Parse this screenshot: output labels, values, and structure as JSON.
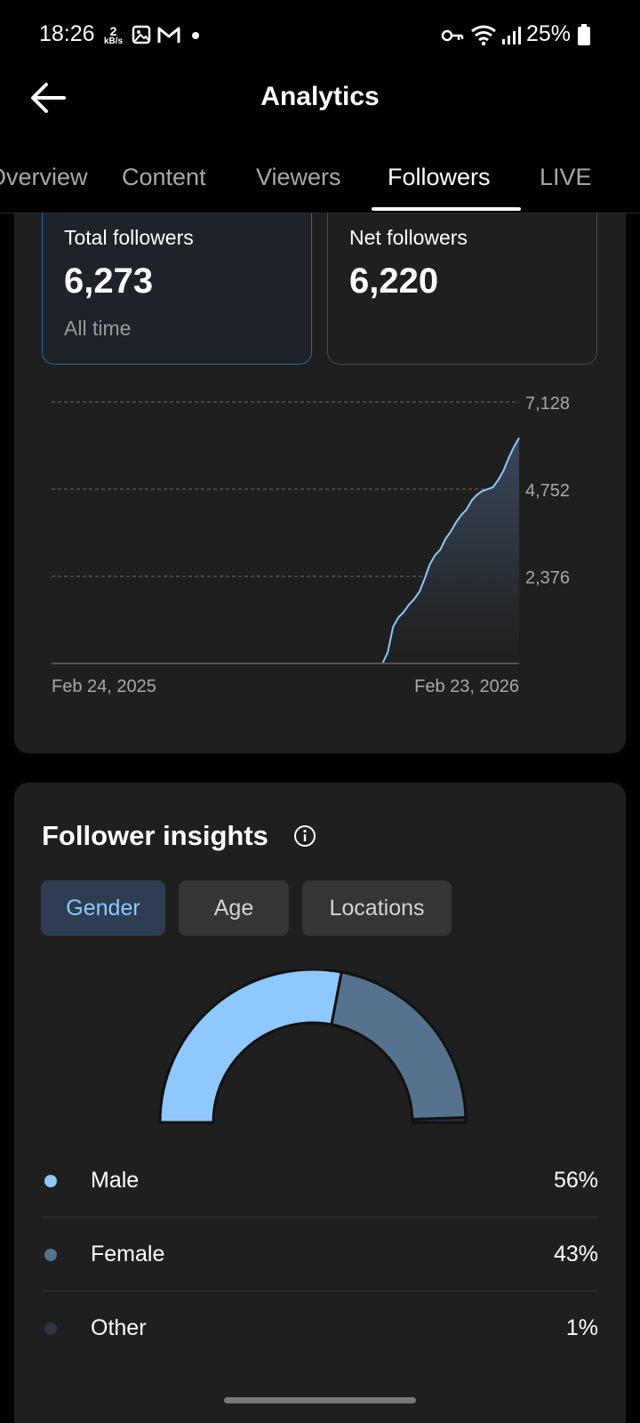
{
  "status": {
    "time": "18:26",
    "net_speed_value": "2",
    "net_speed_unit": "kB/s",
    "battery": "25%"
  },
  "header": {
    "title": "Analytics",
    "back_icon": "arrow-left-icon"
  },
  "tabs": [
    {
      "label": "Overview"
    },
    {
      "label": "Content"
    },
    {
      "label": "Viewers"
    },
    {
      "label": "Followers",
      "active": true
    },
    {
      "label": "LIVE"
    }
  ],
  "stats": {
    "total": {
      "label": "Total followers",
      "value": "6,273",
      "sub": "All time"
    },
    "net": {
      "label": "Net followers",
      "value": "6,220"
    }
  },
  "chart_data": {
    "type": "area",
    "x_start_label": "Feb 24, 2025",
    "x_end_label": "Feb 23, 2026",
    "y_ticks": [
      "2,376",
      "4,752",
      "7,128"
    ],
    "ylim": [
      0,
      7128
    ],
    "grid": true,
    "series": [
      {
        "values": [
          0,
          0,
          0,
          0,
          0,
          0,
          0,
          0,
          0,
          0,
          0,
          0,
          0,
          0,
          0,
          0,
          0,
          0,
          0,
          0,
          0,
          0,
          0,
          0,
          0,
          0,
          0,
          0,
          0,
          0,
          0,
          0,
          0,
          0,
          0,
          0,
          0,
          0,
          0,
          0,
          0,
          0,
          0,
          0,
          0,
          0,
          0,
          0,
          0,
          0,
          0,
          0,
          0,
          0,
          0,
          0,
          0,
          0,
          0,
          0,
          0,
          0,
          0,
          0,
          300,
          1000,
          1250,
          1400,
          1600,
          1750,
          1950,
          2300,
          2700,
          2950,
          3100,
          3400,
          3600,
          3850,
          4050,
          4200,
          4450,
          4600,
          4700,
          4750,
          4800,
          5000,
          5250,
          5600,
          5900,
          6150
        ]
      }
    ],
    "color": "#8ec8ff"
  },
  "insights": {
    "title": "Follower insights",
    "chips": [
      {
        "label": "Gender",
        "active": true
      },
      {
        "label": "Age"
      },
      {
        "label": "Locations"
      }
    ],
    "gender": [
      {
        "label": "Male",
        "value": "56%",
        "pct": 56,
        "color": "#8ec8ff"
      },
      {
        "label": "Female",
        "value": "43%",
        "pct": 43,
        "color": "#56728f"
      },
      {
        "label": "Other",
        "value": "1%",
        "pct": 1,
        "color": "#2a3645"
      }
    ]
  }
}
